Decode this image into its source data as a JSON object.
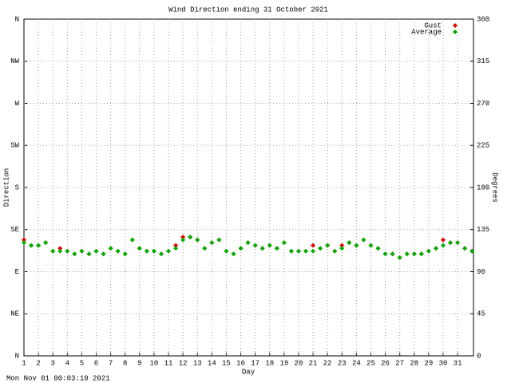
{
  "chart_data": {
    "type": "scatter",
    "title": "Wind Direction ending 31 October 2021",
    "xlabel": "Day",
    "ylabel": "Direction",
    "y2label": "Degrees",
    "footer": "Mon Nov 01 00:03:10 2021",
    "xlim": [
      1,
      32.1
    ],
    "xticks": [
      1,
      2,
      3,
      4,
      5,
      6,
      7,
      8,
      9,
      10,
      11,
      12,
      13,
      14,
      15,
      16,
      17,
      18,
      19,
      20,
      21,
      22,
      23,
      24,
      25,
      26,
      27,
      28,
      29,
      30,
      31
    ],
    "ylim": [
      0,
      360
    ],
    "yticks": [
      {
        "value": 0,
        "label": "N"
      },
      {
        "value": 45,
        "label": "NE"
      },
      {
        "value": 90,
        "label": "E"
      },
      {
        "value": 135,
        "label": "SE"
      },
      {
        "value": 180,
        "label": "S"
      },
      {
        "value": 225,
        "label": "SW"
      },
      {
        "value": 270,
        "label": "W"
      },
      {
        "value": 315,
        "label": "NW"
      },
      {
        "value": 360,
        "label": "N"
      }
    ],
    "y2lim": [
      0,
      360
    ],
    "y2ticks": [
      0,
      45,
      90,
      135,
      180,
      225,
      270,
      315,
      360
    ],
    "grid": true,
    "legend": "top-right",
    "x": [
      1,
      1.5,
      2,
      2.5,
      3,
      3.5,
      4,
      4.5,
      5,
      5.5,
      6,
      6.5,
      7,
      7.5,
      8,
      8.5,
      9,
      9.5,
      10,
      10.5,
      11,
      11.5,
      12,
      12.5,
      13,
      13.5,
      14,
      14.5,
      15,
      15.5,
      16,
      16.5,
      17,
      17.5,
      18,
      18.5,
      19,
      19.5,
      20,
      20.5,
      21,
      21.5,
      22,
      22.5,
      23,
      23.5,
      24,
      24.5,
      25,
      25.5,
      26,
      26.5,
      27,
      27.5,
      28,
      28.5,
      29,
      29.5,
      30,
      30.5,
      31,
      31.5,
      32
    ],
    "series": [
      {
        "name": "Gust",
        "color": "#e00000",
        "values": [
          124,
          118,
          118,
          121,
          112,
          115,
          112,
          109,
          112,
          109,
          112,
          109,
          115,
          112,
          109,
          124,
          115,
          112,
          112,
          109,
          112,
          118,
          127,
          127,
          124,
          115,
          121,
          124,
          112,
          109,
          115,
          121,
          118,
          115,
          118,
          115,
          121,
          112,
          112,
          112,
          118,
          115,
          118,
          112,
          118,
          121,
          118,
          124,
          118,
          115,
          109,
          109,
          105,
          109,
          109,
          109,
          112,
          115,
          124,
          121,
          121,
          115,
          112
        ]
      },
      {
        "name": "Average",
        "color": "#00b000",
        "values": [
          121,
          118,
          118,
          121,
          112,
          112,
          112,
          109,
          112,
          109,
          112,
          109,
          115,
          112,
          109,
          124,
          115,
          112,
          112,
          109,
          112,
          115,
          124,
          127,
          124,
          115,
          121,
          124,
          112,
          109,
          115,
          121,
          118,
          115,
          118,
          115,
          121,
          112,
          112,
          112,
          112,
          115,
          118,
          112,
          115,
          121,
          118,
          124,
          118,
          115,
          109,
          109,
          105,
          109,
          109,
          109,
          112,
          115,
          118,
          121,
          121,
          115,
          112
        ]
      }
    ]
  }
}
